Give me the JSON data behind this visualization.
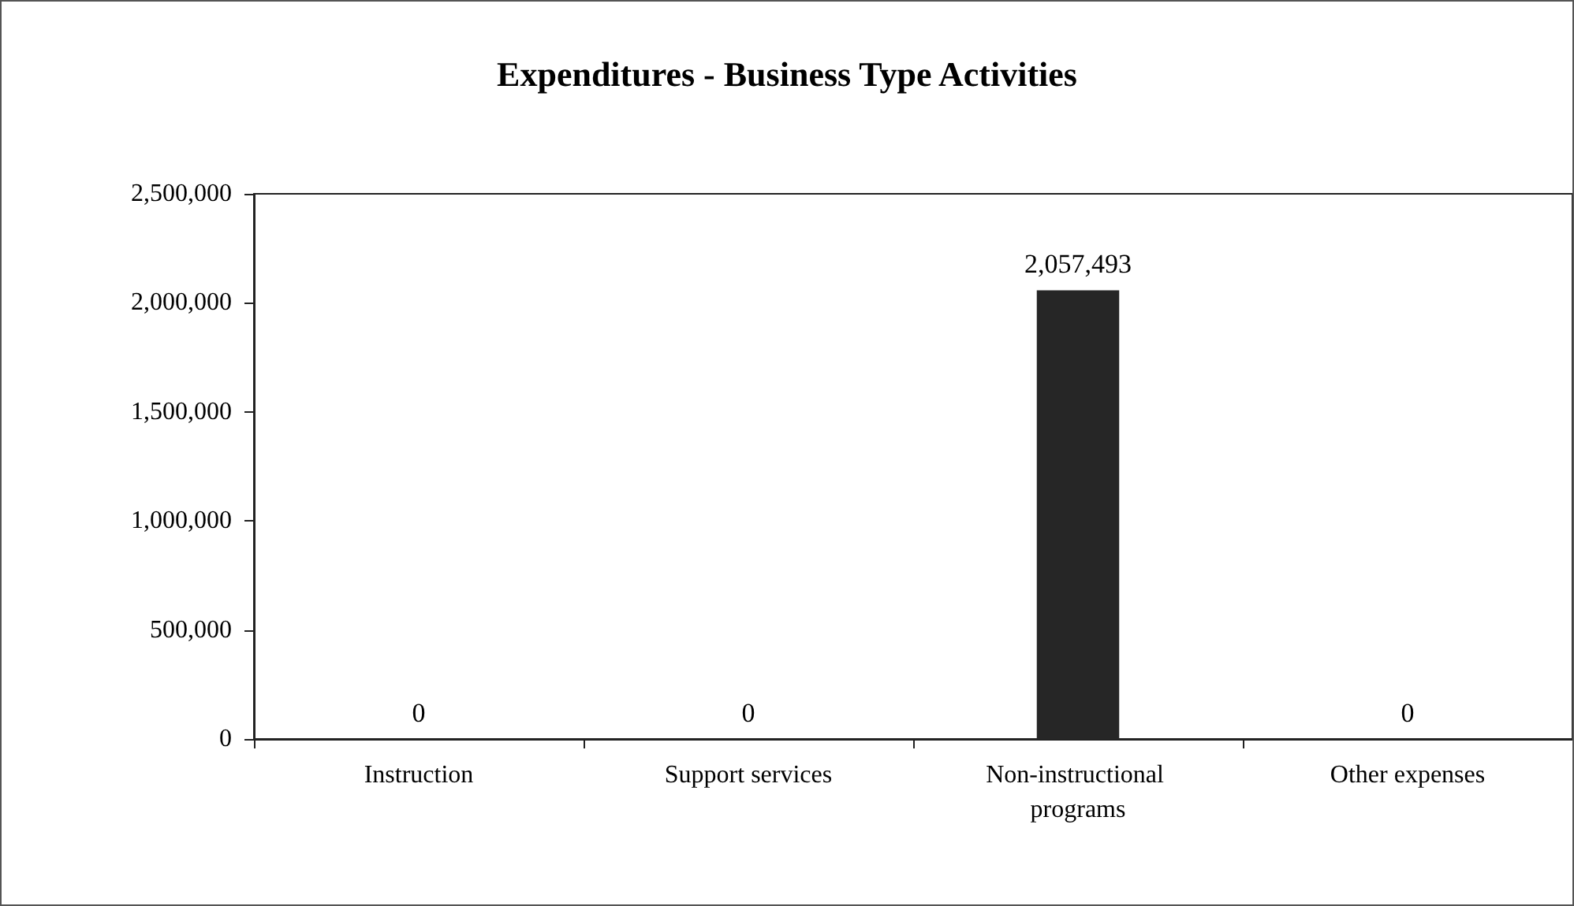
{
  "chart_data": {
    "type": "bar",
    "title": "Expenditures - Business Type Activities",
    "categories": [
      "Instruction",
      "Support services",
      "Non-instructional programs",
      "Other expenses"
    ],
    "values": [
      0,
      0,
      2057493,
      0
    ],
    "color": "#262626",
    "value_labels": [
      "0",
      "0",
      "2,057,493",
      "0"
    ],
    "ylim": [
      0,
      2500000
    ],
    "yticks": [
      {
        "value": 0,
        "label": "0"
      },
      {
        "value": 500000,
        "label": "500,000"
      },
      {
        "value": 1000000,
        "label": "1,000,000"
      },
      {
        "value": 1500000,
        "label": "1,500,000"
      },
      {
        "value": 2000000,
        "label": "2,000,000"
      },
      {
        "value": 2500000,
        "label": "2,500,000"
      }
    ],
    "grid": false
  }
}
